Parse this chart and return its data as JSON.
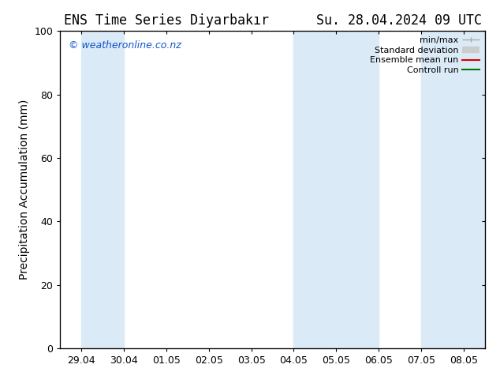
{
  "title": "ENS Time Series Diyarbakır      Su. 28.04.2024 09 UTC",
  "ylabel": "Precipitation Accumulation (mm)",
  "ylim": [
    0,
    100
  ],
  "yticks": [
    0,
    20,
    40,
    60,
    80,
    100
  ],
  "background_color": "#ffffff",
  "plot_bg_color": "#ffffff",
  "shaded_color": "#dbeaf7",
  "xtick_labels": [
    "29.04",
    "30.04",
    "01.05",
    "02.05",
    "03.05",
    "04.05",
    "05.05",
    "06.05",
    "07.05",
    "08.05"
  ],
  "watermark_text": "© weatheronline.co.nz",
  "watermark_color": "#1155cc",
  "legend_minmax_color": "#aaaaaa",
  "legend_std_color": "#cccccc",
  "legend_ens_color": "#dd0000",
  "legend_ctrl_color": "#007700",
  "font_size": 10,
  "title_font_size": 12,
  "tick_font_size": 9
}
